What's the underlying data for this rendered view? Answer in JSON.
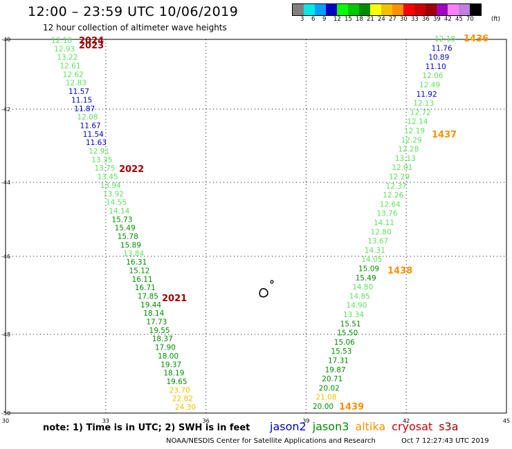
{
  "header": {
    "title": "12:00 – 23:59 UTC 10/06/2019",
    "subtitle": "12 hour collection of altimeter wave heights"
  },
  "color_scale": {
    "unit": "(ft)",
    "colors": [
      "#7f7f7f",
      "#00e8e8",
      "#00a0ff",
      "#0000c8",
      "#00ff00",
      "#00c800",
      "#008c00",
      "#ffff00",
      "#f0c000",
      "#ff9000",
      "#ff0000",
      "#d00000",
      "#a00000",
      "#a000c0",
      "#ff80ff",
      "#c080e0",
      "#000000"
    ],
    "labels": [
      "3",
      "6",
      "9",
      "12",
      "15",
      "18",
      "21",
      "24",
      "27",
      "30",
      "33",
      "36",
      "39",
      "42",
      "45",
      "70"
    ]
  },
  "axes": {
    "x_labels": [
      "30",
      "33",
      "36",
      "39",
      "42",
      "45"
    ],
    "y_labels": [
      "-40",
      "-42",
      "-44",
      "-46",
      "-48",
      "-50"
    ]
  },
  "passes": [
    {
      "color": "#60e060",
      "values": [
        "12.18"
      ]
    },
    {
      "color": "#60e060",
      "values": [
        "12.93",
        "13.22",
        "12.61",
        "12.62",
        "12.83"
      ]
    },
    {
      "color": "#0000c8",
      "values": [
        "11.57",
        "11.15",
        "11.87"
      ]
    },
    {
      "color": "#60e060",
      "values": [
        "12.08"
      ]
    },
    {
      "color": "#0000c8",
      "values": [
        "11.67",
        "11.54",
        "11.63"
      ]
    },
    {
      "color": "#60e060",
      "values": [
        "12.91",
        "13.35",
        "13.75",
        "13.45",
        "13.94",
        "13.92",
        "14.55",
        "14.14"
      ]
    },
    {
      "color": "#008c00",
      "values": [
        "15.73",
        "15.49",
        "15.78",
        "15.89"
      ]
    },
    {
      "color": "#60e060",
      "values": [
        "13.84"
      ]
    },
    {
      "color": "#008c00",
      "values": [
        "16.31",
        "15.12",
        "16.11",
        "16.71",
        "17.85",
        "19.44",
        "18.14",
        "17.73",
        "19.55",
        "18.37",
        "17.90",
        "18.00",
        "19.37",
        "18.19",
        "19.65"
      ]
    },
    {
      "color": "#f0c000",
      "values": [
        "23.70",
        "22.82",
        "24.30"
      ]
    },
    {
      "color": "#60e060",
      "values": [
        "12.18"
      ]
    },
    {
      "color": "#0000c8",
      "values": [
        "11.76",
        "10.89",
        "11.10"
      ]
    },
    {
      "color": "#60e060",
      "values": [
        "12.06",
        "12.49"
      ]
    },
    {
      "color": "#0000c8",
      "values": [
        "11.92"
      ]
    },
    {
      "color": "#60e060",
      "values": [
        "12.13",
        "12.72",
        "12.14",
        "12.19",
        "12.29",
        "12.28",
        "13.13",
        "12.01",
        "12.29",
        "12.37",
        "12.26",
        "12.64",
        "13.76",
        "14.11",
        "12.80",
        "13.67",
        "14.31",
        "14.05"
      ]
    },
    {
      "color": "#008c00",
      "values": [
        "15.09",
        "15.49"
      ]
    },
    {
      "color": "#60e060",
      "values": [
        "14.80",
        "14.85",
        "14.90",
        "13.34"
      ]
    },
    {
      "color": "#008c00",
      "values": [
        "15.51",
        "15.50",
        "15.06",
        "15.53",
        "17.31",
        "19.87",
        "20.71",
        "20.02"
      ]
    },
    {
      "color": "#f0c000",
      "values": [
        "21.08"
      ]
    },
    {
      "color": "#008c00",
      "values": [
        "20.00"
      ]
    }
  ],
  "pass_labels": [
    {
      "text": "2024",
      "color": "#a00000"
    },
    {
      "text": "2023",
      "color": "#a00000"
    },
    {
      "text": "2022",
      "color": "#a00000"
    },
    {
      "text": "2021",
      "color": "#a00000"
    },
    {
      "text": "1436",
      "color": "#ff9000"
    },
    {
      "text": "1437",
      "color": "#ff9000"
    },
    {
      "text": "1438",
      "color": "#ff9000"
    },
    {
      "text": "1439",
      "color": "#ff9000"
    }
  ],
  "footer": {
    "note": "note: 1) Time is in UTC; 2) SWH is in feet",
    "legend": [
      {
        "name": "jason2",
        "color": "#0000c8"
      },
      {
        "name": "jason3",
        "color": "#008c00"
      },
      {
        "name": "altika",
        "color": "#ff9000"
      },
      {
        "name": "cryosat",
        "color": "#d00000"
      },
      {
        "name": "s3a",
        "color": "#a00000"
      }
    ],
    "credit": "NOAA/NESDIS Center for Satellite Applications and Research",
    "timestamp": "Oct  7 12:27:43 UTC 2019"
  }
}
